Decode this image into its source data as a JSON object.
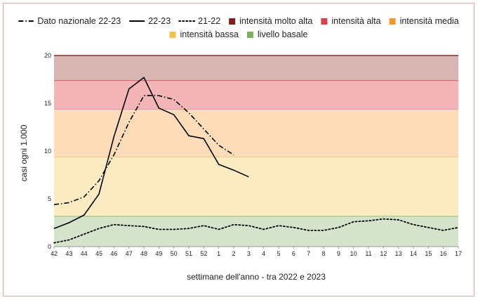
{
  "chart_data": {
    "type": "line",
    "title": "",
    "xlabel": "settimane dell'anno - tra 2022 e 2023",
    "ylabel": "casi ogni 1.000",
    "ylim": [
      0,
      20
    ],
    "yticks": [
      "0",
      "5",
      "10",
      "15",
      "20"
    ],
    "categories": [
      "42",
      "43",
      "44",
      "45",
      "46",
      "47",
      "48",
      "49",
      "50",
      "51",
      "52",
      "1",
      "2",
      "3",
      "4",
      "5",
      "6",
      "7",
      "8",
      "9",
      "10",
      "11",
      "12",
      "13",
      "14",
      "15",
      "16",
      "17"
    ],
    "grid": false,
    "legend_position": "top",
    "series": [
      {
        "name": "Dato nazionale 22-23",
        "style": "dashdot",
        "color": "#000000",
        "values": [
          4.4,
          4.6,
          5.2,
          6.9,
          9.6,
          13.0,
          15.8,
          15.8,
          15.4,
          14.0,
          12.3,
          10.6,
          9.6,
          null,
          null,
          null,
          null,
          null,
          null,
          null,
          null,
          null,
          null,
          null,
          null,
          null,
          null,
          null
        ]
      },
      {
        "name": "22-23",
        "style": "solid",
        "color": "#000000",
        "values": [
          1.9,
          2.5,
          3.3,
          5.5,
          11.5,
          16.5,
          17.7,
          14.5,
          13.8,
          11.6,
          11.3,
          8.6,
          8.0,
          7.3,
          null,
          null,
          null,
          null,
          null,
          null,
          null,
          null,
          null,
          null,
          null,
          null,
          null,
          null
        ]
      },
      {
        "name": "21-22",
        "style": "dotted",
        "color": "#000000",
        "values": [
          0.4,
          0.7,
          1.3,
          1.9,
          2.3,
          2.2,
          2.1,
          1.8,
          1.8,
          1.9,
          2.2,
          1.8,
          2.3,
          2.2,
          1.8,
          2.2,
          2.0,
          1.7,
          1.7,
          2.0,
          2.6,
          2.7,
          2.9,
          2.8,
          2.3,
          2.0,
          1.7,
          2.0
        ]
      }
    ],
    "bands": [
      {
        "name": "livello basale",
        "from": 0,
        "to": 3.2,
        "fill": "#d4e3c9",
        "line": "#7cb061"
      },
      {
        "name": "intensità bassa",
        "from": 3.2,
        "to": 9.4,
        "fill": "#fbebc2",
        "line": "#f0c24e"
      },
      {
        "name": "intensità media",
        "from": 9.4,
        "to": 14.4,
        "fill": "#fcdcb9",
        "line": "#ee9a2e"
      },
      {
        "name": "intensità alta",
        "from": 14.4,
        "to": 17.4,
        "fill": "#f3b5b5",
        "line": "#d94050"
      },
      {
        "name": "intensità molto alta",
        "from": 17.4,
        "to": 20,
        "fill": "#d8b4b3",
        "line": "#8a2a2a"
      }
    ],
    "legend": [
      {
        "label": "Dato nazionale 22-23",
        "kind": "dashdot",
        "color": "#000000"
      },
      {
        "label": "22-23",
        "kind": "solid",
        "color": "#000000"
      },
      {
        "label": "21-22",
        "kind": "dotted",
        "color": "#000000"
      },
      {
        "label": "intensità molto alta",
        "kind": "square",
        "color": "#7b1f1f"
      },
      {
        "label": "intensità alta",
        "kind": "square",
        "color": "#d94050"
      },
      {
        "label": "intensità media",
        "kind": "square",
        "color": "#ee9a2e"
      },
      {
        "label": "intensità bassa",
        "kind": "square",
        "color": "#f0c24e"
      },
      {
        "label": "livello basale",
        "kind": "square",
        "color": "#7cb061"
      }
    ]
  }
}
